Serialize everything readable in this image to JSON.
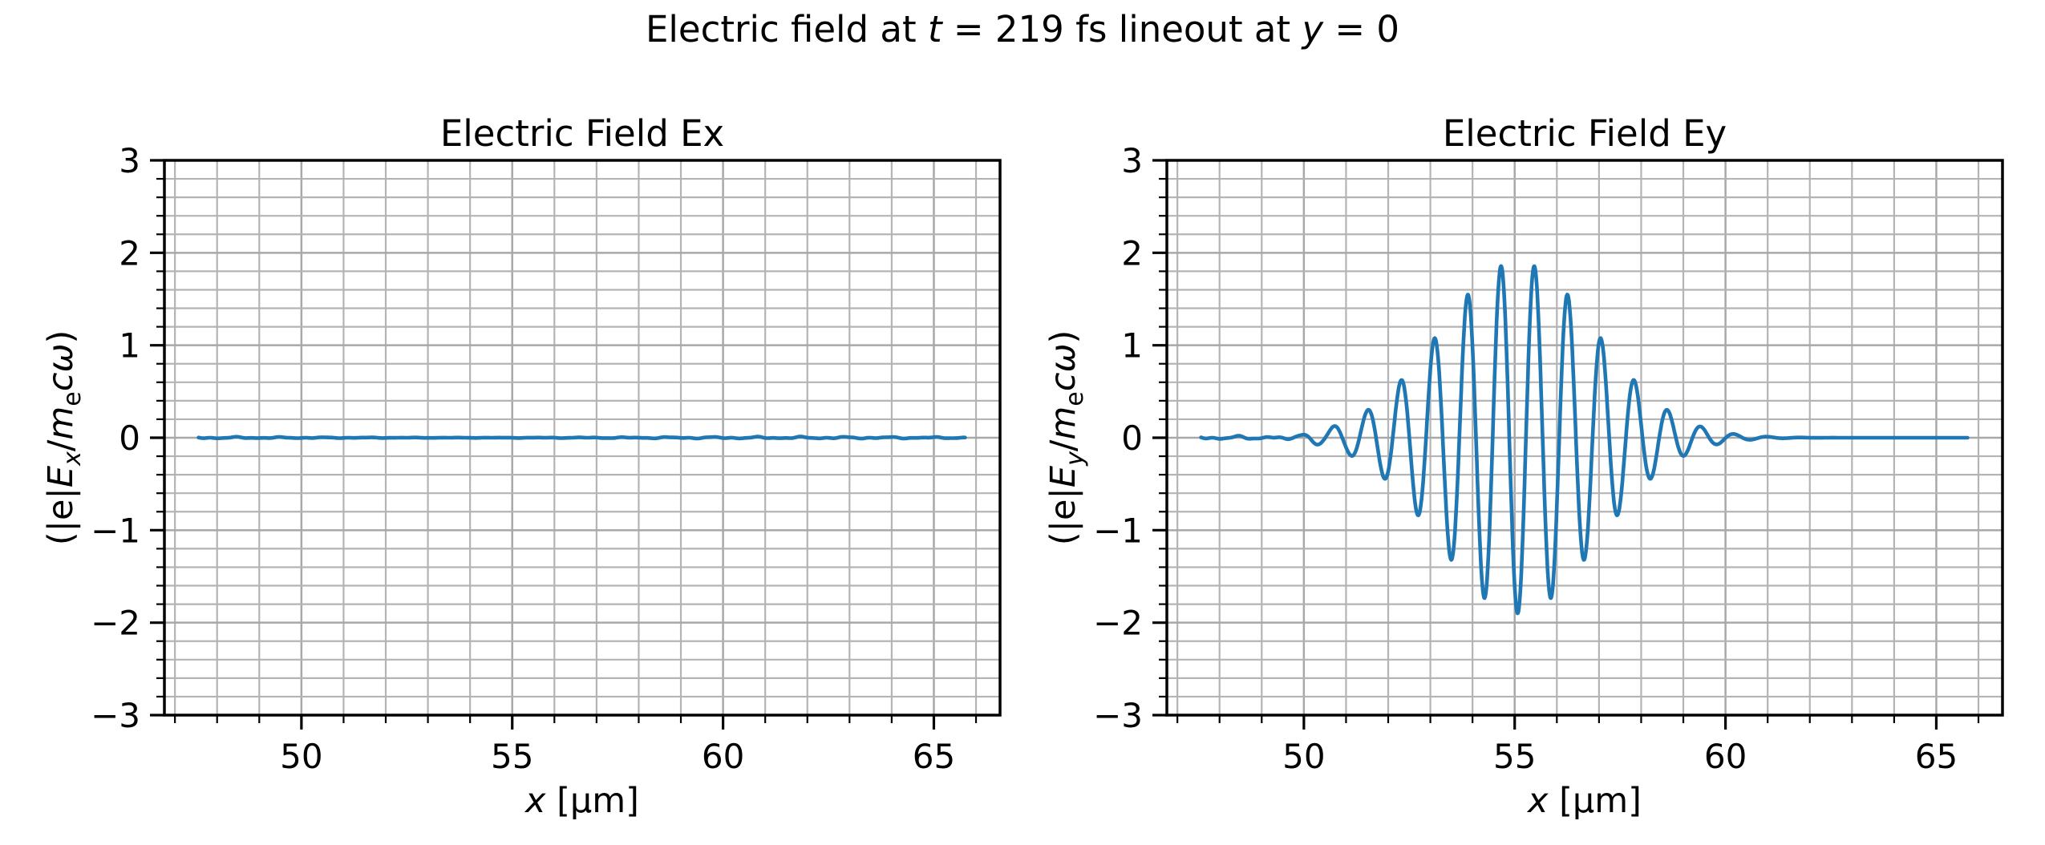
{
  "figure": {
    "suptitle_text": "Electric field at t = 219 fs lineout at y = 0",
    "suptitle_parts": [
      {
        "text": "Electric field at ",
        "italic": false
      },
      {
        "text": "t",
        "italic": true
      },
      {
        "text": " = 219 fs lineout at ",
        "italic": false
      },
      {
        "text": "y",
        "italic": true
      },
      {
        "text": " = 0",
        "italic": false
      }
    ]
  },
  "colors": {
    "line": "#1f77b4",
    "grid_major": "#a8a8a8",
    "grid_minor": "#b4b4b4",
    "spine": "#000000",
    "tick": "#000000",
    "text": "#000000",
    "background": "#ffffff"
  },
  "chart_data": [
    {
      "type": "line",
      "title": "Electric Field Ex",
      "xlabel": "x [µm]",
      "xlabel_parts": [
        {
          "text": "x",
          "italic": true
        },
        {
          "text": " [µm]",
          "italic": false
        }
      ],
      "ylabel": "(|e|Ex/mecω)",
      "ylabel_parts": [
        {
          "text": "(|e|",
          "italic": false
        },
        {
          "text": "E",
          "italic": true
        },
        {
          "text": "x",
          "italic": true,
          "sub": true
        },
        {
          "text": "/",
          "italic": false
        },
        {
          "text": "m",
          "italic": true
        },
        {
          "text": "e",
          "italic": false,
          "sub": true
        },
        {
          "text": "c",
          "italic": true
        },
        {
          "text": "ω",
          "italic": true
        },
        {
          "text": ")",
          "italic": false
        }
      ],
      "xlim": [
        46.75,
        66.57
      ],
      "ylim": [
        -3,
        3
      ],
      "xticks": [
        50,
        55,
        60,
        65
      ],
      "yticks": [
        3,
        2,
        1,
        0,
        -1,
        -2,
        -3
      ],
      "x_minor_step": 1,
      "y_minor_step": 0.2,
      "grid": "both",
      "legend": "none",
      "series": [
        {
          "name": "Ex",
          "x_start": 47.56,
          "x_end": 65.74,
          "model": {
            "kind": "flat",
            "value": 0,
            "noise_amplitude": 0.013
          },
          "summary": "Ex is essentially zero across the whole lineout (tiny numerical noise ~±0.015)."
        }
      ]
    },
    {
      "type": "line",
      "title": "Electric Field Ey",
      "xlabel": "x [µm]",
      "xlabel_parts": [
        {
          "text": "x",
          "italic": true
        },
        {
          "text": " [µm]",
          "italic": false
        }
      ],
      "ylabel": "(|e|Ey/mecω)",
      "ylabel_parts": [
        {
          "text": "(|e|",
          "italic": false
        },
        {
          "text": "E",
          "italic": true
        },
        {
          "text": "y",
          "italic": true,
          "sub": true
        },
        {
          "text": "/",
          "italic": false
        },
        {
          "text": "m",
          "italic": true
        },
        {
          "text": "e",
          "italic": false,
          "sub": true
        },
        {
          "text": "c",
          "italic": true
        },
        {
          "text": "ω",
          "italic": true
        },
        {
          "text": ")",
          "italic": false
        }
      ],
      "xlim": [
        46.75,
        66.57
      ],
      "ylim": [
        -3,
        3
      ],
      "xticks": [
        50,
        55,
        60,
        65
      ],
      "yticks": [
        3,
        2,
        1,
        0,
        -1,
        -2,
        -3
      ],
      "x_minor_step": 1,
      "y_minor_step": 0.2,
      "grid": "both",
      "legend": "none",
      "series": [
        {
          "name": "Ey",
          "x_start": 47.56,
          "x_end": 65.74,
          "model": {
            "kind": "gaussian_wave_packet",
            "carrier": "-cos",
            "center": 55.07,
            "sigma": 1.85,
            "amplitude": 1.9,
            "wavelength": 0.79,
            "noise_amplitude": 0.02,
            "noise_fade_start": 50.9,
            "noise_fade_end": 51.4
          },
          "key_points": {
            "positive_peaks": [
              [
                51.52,
                0.3
              ],
              [
                52.31,
                0.6
              ],
              [
                53.1,
                1.07
              ],
              [
                53.89,
                1.55
              ],
              [
                54.68,
                1.85
              ],
              [
                55.47,
                1.85
              ],
              [
                56.26,
                1.55
              ],
              [
                57.05,
                1.07
              ],
              [
                57.84,
                0.6
              ],
              [
                58.63,
                0.3
              ]
            ],
            "negative_peaks": [
              [
                51.12,
                -0.17
              ],
              [
                51.91,
                -0.41
              ],
              [
                52.7,
                -0.8
              ],
              [
                53.49,
                -1.3
              ],
              [
                54.28,
                -1.73
              ],
              [
                55.07,
                -1.9
              ],
              [
                55.86,
                -1.73
              ],
              [
                56.65,
                -1.3
              ],
              [
                57.44,
                -0.8
              ],
              [
                58.23,
                -0.41
              ],
              [
                59.02,
                -0.17
              ]
            ]
          },
          "summary": "Ey is a laser wave packet: Gaussian envelope centered near x = 55.1 µm, peak amplitude ≈ ±1.9, carrier wavelength ≈ 0.8 µm, flat ≈ 0 outside 51–59.5 µm."
        }
      ]
    }
  ]
}
